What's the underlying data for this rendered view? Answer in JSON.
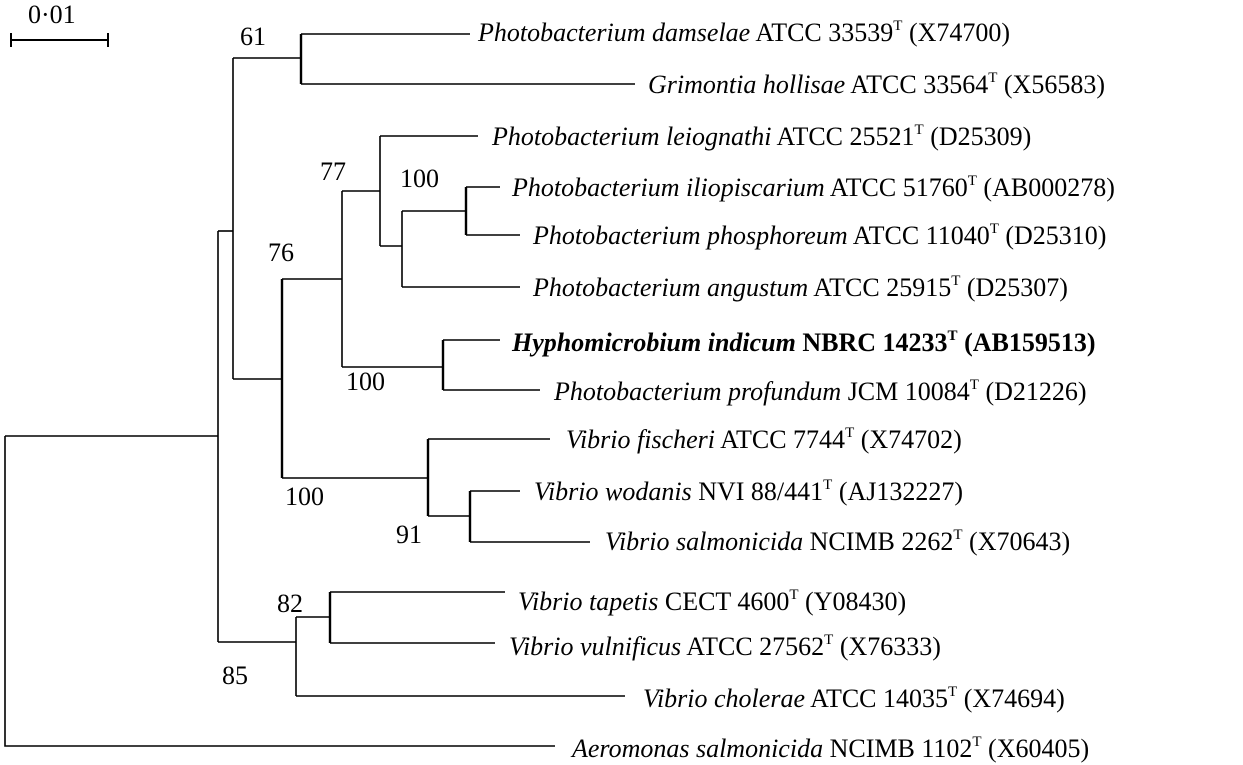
{
  "scale_bar": {
    "label": "0·01"
  },
  "bootstrap": [
    "61",
    "77",
    "100",
    "76",
    "100",
    "100",
    "91",
    "82",
    "85"
  ],
  "taxa": [
    {
      "species": "Photobacterium damselae",
      "strain": "ATCC 33539",
      "type": "T",
      "accession": "(X74700)"
    },
    {
      "species": "Grimontia hollisae",
      "strain": "ATCC 33564",
      "type": "T",
      "accession": "(X56583)"
    },
    {
      "species": "Photobacterium leiognathi",
      "strain": "ATCC 25521",
      "type": "T",
      "accession": "(D25309)"
    },
    {
      "species": "Photobacterium iliopiscarium",
      "strain": "ATCC 51760",
      "type": "T",
      "accession": "(AB000278)"
    },
    {
      "species": "Photobacterium phosphoreum",
      "strain": "ATCC 11040",
      "type": "T",
      "accession": "(D25310)"
    },
    {
      "species": "Photobacterium angustum",
      "strain": "ATCC 25915",
      "type": "T",
      "accession": "(D25307)"
    },
    {
      "species": "Hyphomicrobium indicum",
      "strain": "NBRC 14233",
      "type": "T",
      "accession": "(AB159513)"
    },
    {
      "species": "Photobacterium profundum",
      "strain": "JCM 10084",
      "type": "T",
      "accession": "(D21226)"
    },
    {
      "species": "Vibrio fischeri",
      "strain": "ATCC 7744",
      "type": "T",
      "accession": "(X74702)"
    },
    {
      "species": "Vibrio wodanis",
      "strain": "NVI 88/441",
      "type": "T",
      "accession": "(AJ132227)"
    },
    {
      "species": "Vibrio salmonicida",
      "strain": "NCIMB 2262",
      "type": "T",
      "accession": "(X70643)"
    },
    {
      "species": "Vibrio tapetis",
      "strain": "CECT 4600",
      "type": "T",
      "accession": "(Y08430)"
    },
    {
      "species": "Vibrio vulnificus",
      "strain": "ATCC 27562",
      "type": "T",
      "accession": "(X76333)"
    },
    {
      "species": "Vibrio cholerae",
      "strain": "ATCC 14035",
      "type": "T",
      "accession": "(X74694)"
    },
    {
      "species": "Aeromonas salmonicida",
      "strain": "NCIMB 1102",
      "type": "T",
      "accession": "(X60405)"
    }
  ]
}
